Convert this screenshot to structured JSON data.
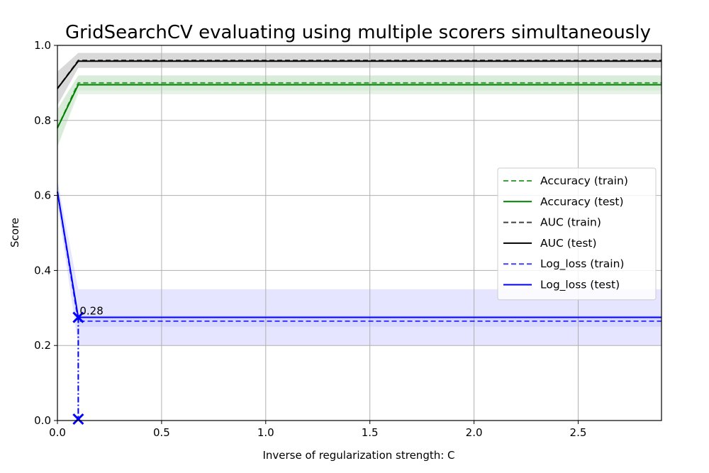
{
  "chart_data": {
    "type": "line",
    "title": "GridSearchCV evaluating using multiple scorers simultaneously",
    "xlabel": "Inverse of regularization strength: C",
    "ylabel": "Score",
    "xlim": [
      0,
      2.9
    ],
    "ylim": [
      0.0,
      1.0
    ],
    "x_ticks": [
      0.0,
      0.5,
      1.0,
      1.5,
      2.0,
      2.5
    ],
    "x_tick_labels": [
      "0.0",
      "0.5",
      "1.0",
      "1.5",
      "2.0",
      "2.5"
    ],
    "y_ticks": [
      0.0,
      0.2,
      0.4,
      0.6,
      0.8,
      1.0
    ],
    "y_tick_labels": [
      "0.0",
      "0.2",
      "0.4",
      "0.6",
      "0.8",
      "1.0"
    ],
    "grid": true,
    "legend_position": "center-right",
    "x": [
      0.0,
      0.1,
      2.9
    ],
    "series": [
      {
        "name": "Accuracy (train)",
        "color": "#008000",
        "style": "dashed",
        "values": [
          0.78,
          0.9,
          0.9
        ],
        "band": [
          [
            0.73,
            0.83
          ],
          [
            0.88,
            0.92
          ],
          [
            0.88,
            0.92
          ]
        ]
      },
      {
        "name": "Accuracy (test)",
        "color": "#008000",
        "style": "solid",
        "values": [
          0.78,
          0.895,
          0.895
        ],
        "band": [
          [
            0.73,
            0.83
          ],
          [
            0.87,
            0.92
          ],
          [
            0.87,
            0.92
          ]
        ]
      },
      {
        "name": "AUC (train)",
        "color": "#000000",
        "style": "dashed",
        "values": [
          0.885,
          0.96,
          0.96
        ],
        "band": [
          [
            0.84,
            0.93
          ],
          [
            0.94,
            0.98
          ],
          [
            0.94,
            0.98
          ]
        ]
      },
      {
        "name": "AUC (test)",
        "color": "#000000",
        "style": "solid",
        "values": [
          0.885,
          0.958,
          0.958
        ],
        "band": [
          [
            0.84,
            0.93
          ],
          [
            0.94,
            0.98
          ],
          [
            0.94,
            0.98
          ]
        ]
      },
      {
        "name": "Log_loss (train)",
        "color": "#0000ff",
        "style": "dashed",
        "values": [
          0.61,
          0.265,
          0.265
        ],
        "band": [
          [
            0.58,
            0.64
          ],
          [
            0.25,
            0.28
          ],
          [
            0.25,
            0.28
          ]
        ]
      },
      {
        "name": "Log_loss (test)",
        "color": "#0000ff",
        "style": "solid",
        "values": [
          0.61,
          0.275,
          0.275
        ],
        "band": [
          [
            0.58,
            0.64
          ],
          [
            0.2,
            0.35
          ],
          [
            0.2,
            0.35
          ]
        ]
      }
    ],
    "best_marker": {
      "x": 0.1,
      "y": 0.275,
      "label": "0.28",
      "color": "#0000ff"
    }
  }
}
